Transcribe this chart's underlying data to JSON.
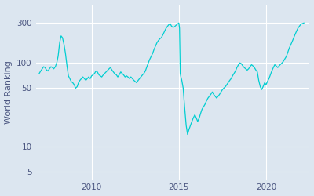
{
  "ylabel": "World Ranking",
  "line_color": "#00CED1",
  "axes_facecolor": "#dce6f0",
  "figure_facecolor": "#dce6f0",
  "yticks": [
    5,
    10,
    50,
    100,
    300
  ],
  "ytick_labels": [
    "5",
    "10",
    "50",
    "100",
    "300"
  ],
  "xticks": [
    2010,
    2015,
    2020
  ],
  "xlim": [
    2006.8,
    2022.5
  ],
  "ylim": [
    4,
    500
  ],
  "linewidth": 0.9,
  "dates": [
    2007.0,
    2007.08,
    2007.17,
    2007.25,
    2007.33,
    2007.42,
    2007.5,
    2007.58,
    2007.67,
    2007.75,
    2007.83,
    2007.92,
    2008.0,
    2008.08,
    2008.17,
    2008.25,
    2008.33,
    2008.42,
    2008.5,
    2008.58,
    2008.67,
    2008.75,
    2008.83,
    2008.92,
    2009.0,
    2009.08,
    2009.17,
    2009.25,
    2009.33,
    2009.42,
    2009.5,
    2009.58,
    2009.67,
    2009.75,
    2009.83,
    2009.92,
    2010.0,
    2010.08,
    2010.17,
    2010.25,
    2010.33,
    2010.42,
    2010.5,
    2010.58,
    2010.67,
    2010.75,
    2010.83,
    2010.92,
    2011.0,
    2011.08,
    2011.17,
    2011.25,
    2011.33,
    2011.42,
    2011.5,
    2011.58,
    2011.67,
    2011.75,
    2011.83,
    2011.92,
    2012.0,
    2012.08,
    2012.17,
    2012.25,
    2012.33,
    2012.42,
    2012.5,
    2012.58,
    2012.67,
    2012.75,
    2012.83,
    2012.92,
    2013.0,
    2013.08,
    2013.17,
    2013.25,
    2013.33,
    2013.42,
    2013.5,
    2013.58,
    2013.67,
    2013.75,
    2013.83,
    2013.92,
    2014.0,
    2014.08,
    2014.17,
    2014.25,
    2014.33,
    2014.42,
    2014.5,
    2014.58,
    2014.67,
    2014.75,
    2014.83,
    2014.92,
    2015.0,
    2015.04,
    2015.08,
    2015.12,
    2015.17,
    2015.25,
    2015.33,
    2015.42,
    2015.5,
    2015.58,
    2015.67,
    2015.75,
    2015.83,
    2015.92,
    2016.0,
    2016.08,
    2016.17,
    2016.25,
    2016.33,
    2016.42,
    2016.5,
    2016.58,
    2016.67,
    2016.75,
    2016.83,
    2016.92,
    2017.0,
    2017.08,
    2017.17,
    2017.25,
    2017.33,
    2017.42,
    2017.5,
    2017.58,
    2017.67,
    2017.75,
    2017.83,
    2017.92,
    2018.0,
    2018.08,
    2018.17,
    2018.25,
    2018.33,
    2018.42,
    2018.5,
    2018.58,
    2018.67,
    2018.75,
    2018.83,
    2018.92,
    2019.0,
    2019.08,
    2019.17,
    2019.25,
    2019.33,
    2019.42,
    2019.5,
    2019.58,
    2019.67,
    2019.75,
    2019.83,
    2019.92,
    2020.0,
    2020.08,
    2020.17,
    2020.25,
    2020.33,
    2020.42,
    2020.5,
    2020.58,
    2020.67,
    2020.75,
    2020.83,
    2020.92,
    2021.0,
    2021.17,
    2021.33,
    2021.5,
    2021.67,
    2021.83,
    2022.0,
    2022.17
  ],
  "rankings": [
    75,
    80,
    85,
    90,
    88,
    82,
    80,
    85,
    90,
    88,
    85,
    90,
    100,
    120,
    175,
    210,
    200,
    165,
    130,
    95,
    70,
    65,
    60,
    58,
    55,
    50,
    52,
    58,
    62,
    65,
    68,
    65,
    62,
    65,
    68,
    65,
    70,
    72,
    75,
    80,
    78,
    72,
    70,
    68,
    72,
    75,
    78,
    82,
    85,
    88,
    82,
    78,
    74,
    72,
    68,
    72,
    78,
    75,
    72,
    68,
    70,
    68,
    65,
    68,
    65,
    62,
    60,
    58,
    62,
    65,
    68,
    72,
    75,
    80,
    90,
    100,
    110,
    120,
    130,
    145,
    160,
    175,
    185,
    195,
    200,
    215,
    235,
    255,
    270,
    285,
    295,
    275,
    265,
    270,
    280,
    290,
    300,
    260,
    75,
    68,
    62,
    50,
    30,
    18,
    14,
    16,
    18,
    20,
    22,
    24,
    22,
    20,
    22,
    25,
    28,
    30,
    32,
    35,
    38,
    40,
    42,
    45,
    42,
    40,
    38,
    40,
    42,
    45,
    48,
    50,
    52,
    55,
    58,
    62,
    65,
    70,
    75,
    80,
    88,
    95,
    100,
    98,
    92,
    88,
    85,
    82,
    85,
    90,
    95,
    92,
    88,
    82,
    78,
    62,
    52,
    48,
    52,
    58,
    55,
    60,
    65,
    72,
    80,
    88,
    95,
    92,
    88,
    92,
    96,
    100,
    105,
    120,
    150,
    180,
    220,
    260,
    290,
    300
  ]
}
